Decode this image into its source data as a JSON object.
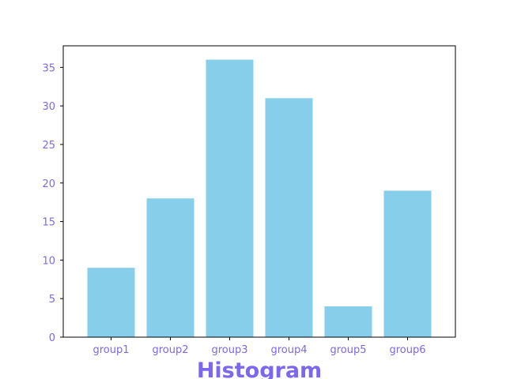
{
  "chart_data": {
    "type": "bar",
    "title": "Histogram",
    "categories": [
      "group1",
      "group2",
      "group3",
      "group4",
      "group5",
      "group6"
    ],
    "values": [
      9,
      18,
      36,
      31,
      4,
      19
    ],
    "xlabel": "",
    "ylabel": "",
    "ylim": [
      0,
      37.8
    ],
    "yticks": [
      0,
      5,
      10,
      15,
      20,
      25,
      30,
      35
    ],
    "grid": false,
    "legend": "none"
  },
  "colors": {
    "bar": "#87ceeb",
    "text": "#7b68ee",
    "axis": "#000000",
    "background": "#ffffff"
  }
}
